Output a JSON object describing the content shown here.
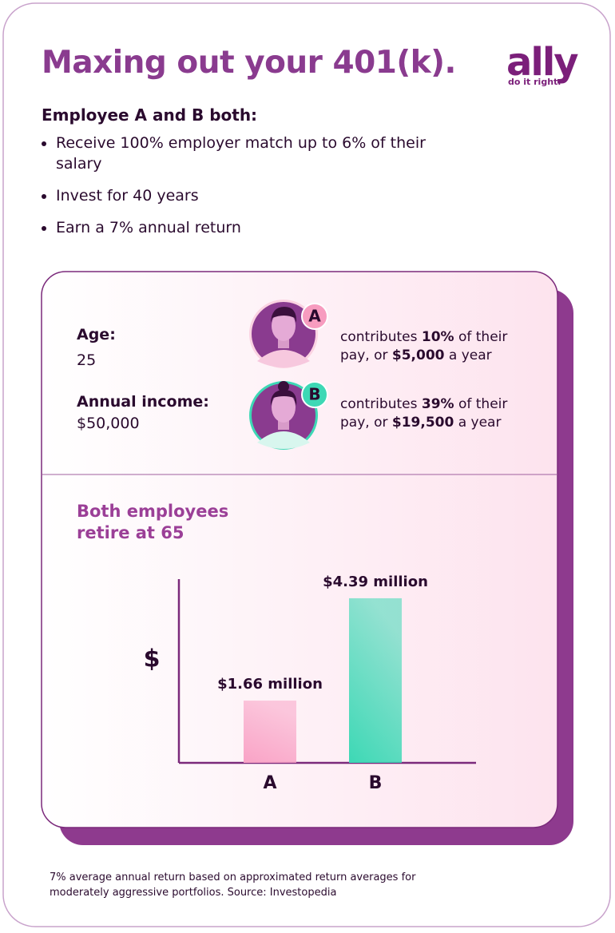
{
  "header": {
    "title": "Maxing out your 401(k).",
    "logo": "ally",
    "tagline": "do it right."
  },
  "intro": {
    "heading": "Employee A and B both:",
    "bullets": [
      "Receive 100% employer match up to 6% of their salary",
      "Invest for 40 years",
      "Earn a 7% annual return"
    ]
  },
  "profile": {
    "age_label": "Age:",
    "age": "25",
    "income_label": "Annual income:",
    "income": "$50,000"
  },
  "employees": [
    {
      "badge": "A",
      "text": [
        "contributes ",
        "10%",
        " of their pay, or ",
        "$5,000",
        " a year"
      ]
    },
    {
      "badge": "B",
      "text": [
        "contributes ",
        "39%",
        " of their pay, or ",
        "$19,500",
        " a year"
      ]
    }
  ],
  "chart_data": {
    "type": "bar",
    "title": "Both employees retire at 65",
    "y_label": "$",
    "categories": [
      "A",
      "B"
    ],
    "values": [
      1.66,
      4.39
    ],
    "value_labels": [
      "$1.66 million",
      "$4.39 million"
    ],
    "colors": [
      "#f9a3c6",
      "#3dd8b5"
    ],
    "ylim": [
      0,
      4.9
    ]
  },
  "footnote": "7% average annual return based on approximated return averages for moderately aggressive portfolios. Source: Investopedia"
}
